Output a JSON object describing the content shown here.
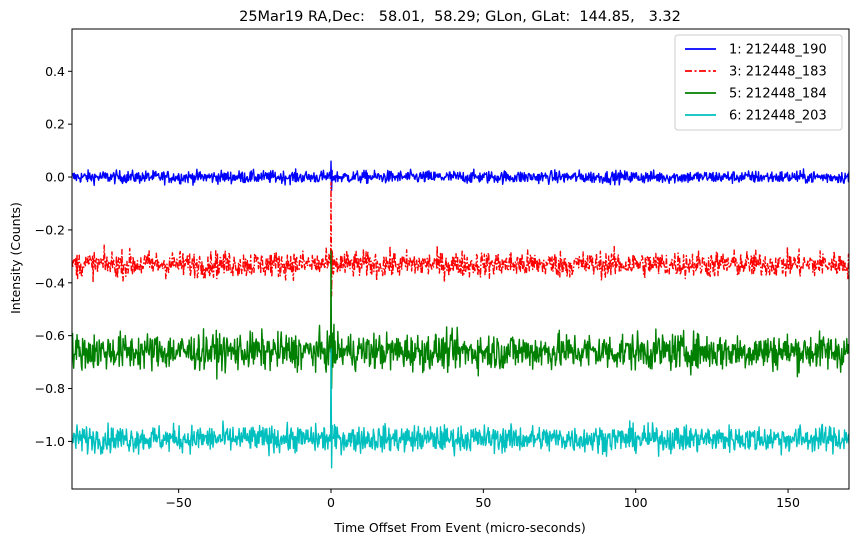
{
  "chart_data": {
    "type": "line",
    "title": "25Mar19 RA,Dec:   58.01,  58.29; GLon, GLat:  144.85,   3.32",
    "xlabel": "Time Offset From Event (micro-seconds)",
    "ylabel": "Intensity (Counts)",
    "xlim": [
      -85,
      170
    ],
    "ylim": [
      -1.18,
      0.56
    ],
    "grid": false,
    "legend_position": "top-right",
    "x_ticks": [
      -50,
      0,
      50,
      100,
      150
    ],
    "x_tick_labels": [
      "−50",
      "0",
      "50",
      "100",
      "150"
    ],
    "y_ticks": [
      0.4,
      0.2,
      0.0,
      -0.2,
      -0.4,
      -0.6,
      -0.8,
      -1.0
    ],
    "y_tick_labels": [
      "0.4",
      "0.2",
      "0.0",
      "−0.2",
      "−0.4",
      "−0.6",
      "−0.8",
      "−1.0"
    ],
    "event_time": 0,
    "series": [
      {
        "name": "1: 212448_190",
        "color": "#0000ff",
        "linestyle": "solid",
        "mean": 0.0,
        "noise_amplitude": 0.012,
        "spike_max": 0.06,
        "spike_min": -0.05
      },
      {
        "name": "3: 212448_183",
        "color": "#ff0000",
        "linestyle": "dashdot",
        "mean": -0.33,
        "noise_amplitude": 0.025,
        "spike_max": -0.02,
        "spike_min": -0.45
      },
      {
        "name": "5: 212448_184",
        "color": "#008000",
        "linestyle": "solid",
        "mean": -0.66,
        "noise_amplitude": 0.035,
        "spike_max": -0.28,
        "spike_min": -0.8
      },
      {
        "name": "6: 212448_203",
        "color": "#00bfbf",
        "linestyle": "solid",
        "mean": -0.99,
        "noise_amplitude": 0.025,
        "spike_max": -0.65,
        "spike_min": -1.1
      }
    ]
  }
}
